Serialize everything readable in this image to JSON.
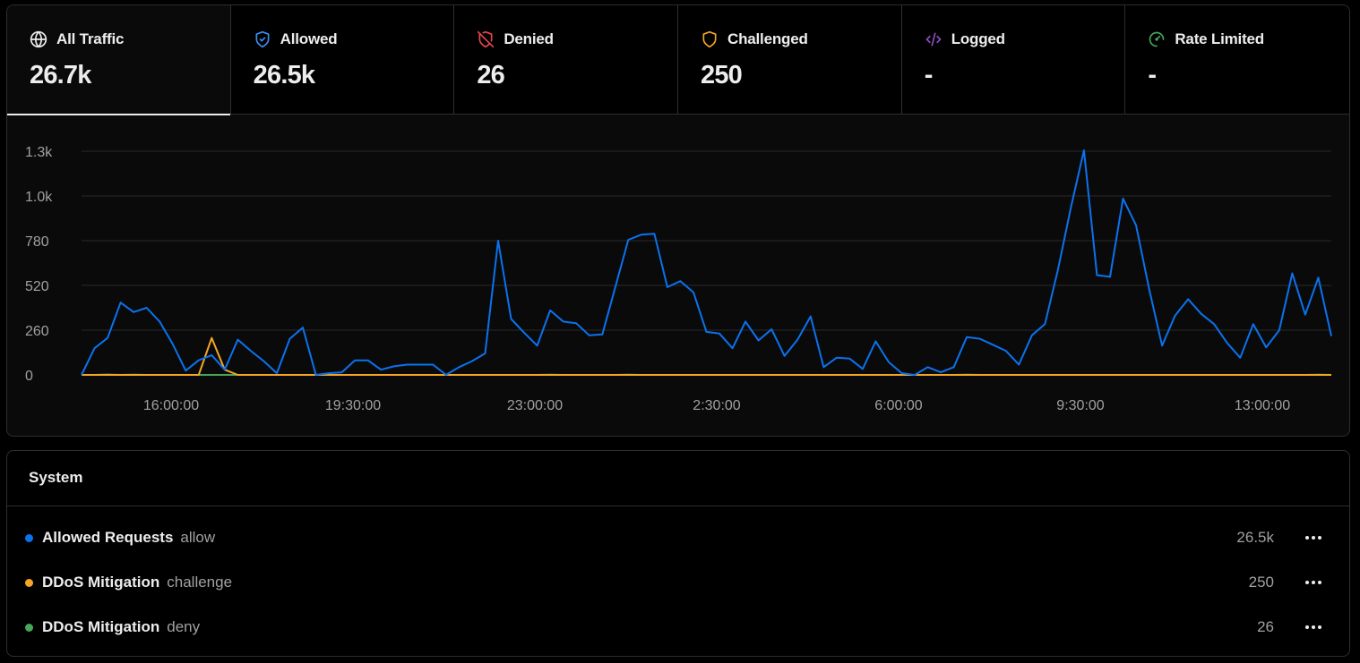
{
  "tabs": [
    {
      "id": "all",
      "label": "All Traffic",
      "value": "26.7k",
      "icon": "globe-icon",
      "color": "#ededed",
      "active": true
    },
    {
      "id": "allowed",
      "label": "Allowed",
      "value": "26.5k",
      "icon": "shield-check-icon",
      "color": "#3b8ef5"
    },
    {
      "id": "denied",
      "label": "Denied",
      "value": "26",
      "icon": "shield-off-icon",
      "color": "#e5484d"
    },
    {
      "id": "challenged",
      "label": "Challenged",
      "value": "250",
      "icon": "shield-icon",
      "color": "#f5a623"
    },
    {
      "id": "logged",
      "label": "Logged",
      "value": "-",
      "icon": "code-icon",
      "color": "#8e4ec6"
    },
    {
      "id": "rate",
      "label": "Rate Limited",
      "value": "-",
      "icon": "gauge-icon",
      "color": "#46a758"
    }
  ],
  "chart_data": {
    "type": "line",
    "y_ticks": [
      "1.3k",
      "1.0k",
      "780",
      "520",
      "260",
      "0"
    ],
    "y_tick_values": [
      1300,
      1040,
      780,
      520,
      260,
      0
    ],
    "ylim": [
      0,
      1300
    ],
    "x_ticks": [
      "16:00:00",
      "19:30:00",
      "23:00:00",
      "2:30:00",
      "6:00:00",
      "9:30:00",
      "13:00:00"
    ],
    "grid": true,
    "series": [
      {
        "color": "#0a72ef",
        "values": [
          0,
          155,
          215,
          420,
          365,
          390,
          310,
          180,
          25,
          85,
          115,
          30,
          205,
          140,
          80,
          10,
          210,
          275,
          0,
          10,
          15,
          85,
          85,
          30,
          50,
          60,
          60,
          60,
          0,
          45,
          80,
          125,
          780,
          325,
          245,
          170,
          375,
          310,
          300,
          230,
          235,
          510,
          785,
          815,
          820,
          510,
          545,
          480,
          250,
          240,
          155,
          310,
          200,
          265,
          110,
          205,
          340,
          45,
          100,
          95,
          35,
          195,
          75,
          10,
          0,
          45,
          15,
          45,
          220,
          210,
          175,
          140,
          60,
          230,
          295,
          610,
          975,
          1305,
          580,
          570,
          1025,
          870,
          500,
          170,
          345,
          440,
          355,
          295,
          185,
          100,
          295,
          160,
          260,
          590,
          350,
          565,
          225
        ]
      },
      {
        "color": "#f5a623",
        "values": [
          0,
          0,
          0,
          0,
          0,
          0,
          0,
          0,
          0,
          0,
          215,
          30,
          0,
          0,
          0,
          0,
          0,
          0,
          0,
          0,
          0,
          0,
          0,
          0,
          0,
          0,
          0,
          0,
          0,
          0,
          0,
          0,
          0,
          0,
          0,
          0,
          0,
          0,
          0,
          0,
          0,
          0,
          0,
          0,
          0,
          0,
          0,
          0,
          0,
          0,
          0,
          0,
          0,
          0,
          0,
          0,
          0,
          0,
          0,
          0,
          0,
          0,
          0,
          0,
          0,
          0,
          0,
          0,
          0,
          0,
          0,
          0,
          0,
          0,
          0,
          0,
          0,
          0,
          0,
          0,
          0,
          0,
          0,
          0,
          0,
          0,
          0,
          0,
          0,
          0,
          0,
          0,
          0,
          0,
          0,
          0,
          0
        ]
      },
      {
        "color": "#46a758",
        "values": [
          0,
          0,
          2,
          0,
          1,
          0,
          0,
          0,
          0,
          0,
          0,
          0,
          0,
          0,
          0,
          0,
          0,
          0,
          0,
          0,
          0,
          0,
          0,
          0,
          0,
          0,
          0,
          0,
          0,
          0,
          0,
          0,
          0,
          0,
          0,
          0,
          1,
          0,
          0,
          0,
          0,
          0,
          1,
          0,
          0,
          0,
          0,
          0,
          0,
          0,
          0,
          0,
          0,
          0,
          0,
          0,
          0,
          0,
          0,
          0,
          0,
          0,
          0,
          0,
          0,
          0,
          0,
          0,
          1,
          0,
          0,
          0,
          0,
          0,
          0,
          0,
          0,
          0,
          0,
          0,
          0,
          0,
          0,
          0,
          0,
          0,
          0,
          0,
          0,
          0,
          0,
          0,
          0,
          0,
          0,
          1,
          0
        ]
      }
    ]
  },
  "system": {
    "title": "System",
    "rules": [
      {
        "name": "Allowed Requests",
        "action": "allow",
        "count": "26.5k",
        "color": "#0a72ef"
      },
      {
        "name": "DDoS Mitigation",
        "action": "challenge",
        "count": "250",
        "color": "#f5a623"
      },
      {
        "name": "DDoS Mitigation",
        "action": "deny",
        "count": "26",
        "color": "#46a758"
      }
    ]
  }
}
